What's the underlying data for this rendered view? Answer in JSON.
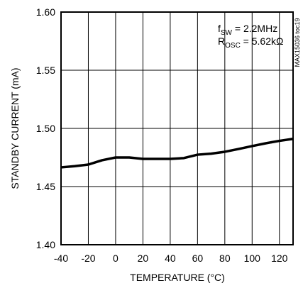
{
  "chart_data": {
    "type": "line",
    "x_label": "TEMPERATURE (°C)",
    "y_label": "STANDBY CURRENT (mA)",
    "annotations": [
      {
        "main": "f",
        "sub": "SW",
        "rest": " = 2.2MHz"
      },
      {
        "main": "R",
        "sub": "OSC",
        "rest": " = 5.62kΩ"
      }
    ],
    "side_note": "MAX15036 toc19",
    "x": [
      -40,
      -30,
      -20,
      -10,
      0,
      10,
      20,
      30,
      40,
      50,
      60,
      70,
      80,
      90,
      100,
      110,
      120,
      130
    ],
    "series": [
      {
        "color": "#000000",
        "values": [
          1.4665,
          1.4675,
          1.4689,
          1.4726,
          1.475,
          1.475,
          1.4738,
          1.4738,
          1.4738,
          1.4745,
          1.4774,
          1.4783,
          1.4799,
          1.4823,
          1.4848,
          1.4872,
          1.4893,
          1.491
        ]
      }
    ],
    "xlim": [
      -40,
      130
    ],
    "xticks": [
      -40,
      -20,
      0,
      20,
      40,
      60,
      80,
      100,
      120
    ],
    "ylim": [
      1.4,
      1.6
    ],
    "yticks": [
      {
        "value": 1.4,
        "label": "1.40"
      },
      {
        "value": 1.45,
        "label": "1.45"
      },
      {
        "value": 1.5,
        "label": "1.50"
      },
      {
        "value": 1.55,
        "label": "1.55"
      },
      {
        "value": 1.6,
        "label": "1.60"
      }
    ],
    "grid": true
  }
}
